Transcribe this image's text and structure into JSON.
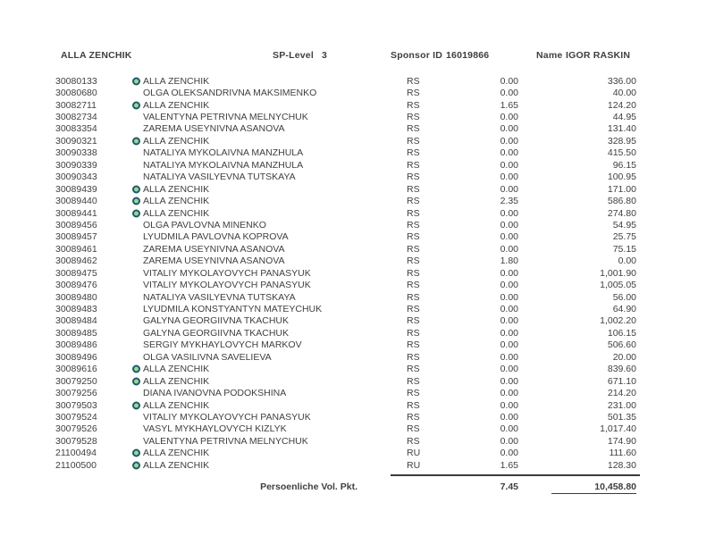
{
  "page": {
    "header": {
      "owner_name": "ALLA ZENCHIK",
      "sp_level_label": "SP-Level",
      "sp_level_value": "3",
      "sponsor_id_label": "Sponsor ID",
      "sponsor_id_value": "16019866",
      "name_label": "Name",
      "name_value": "IGOR RASKIN"
    },
    "colors": {
      "text": "#3f3f3f",
      "marker_ring": "#1c5d68",
      "marker_fill": "#9fd39b"
    },
    "table": {
      "rows": [
        {
          "id": "30080133",
          "marked": true,
          "name": "ALLA ZENCHIK",
          "code": "RS",
          "points": "0.00",
          "volume": "336.00"
        },
        {
          "id": "30080680",
          "marked": false,
          "name": "OLGA OLEKSANDRIVNA MAKSIMENKO",
          "code": "RS",
          "points": "0.00",
          "volume": "40.00"
        },
        {
          "id": "30082711",
          "marked": true,
          "name": "ALLA ZENCHIK",
          "code": "RS",
          "points": "1.65",
          "volume": "124.20"
        },
        {
          "id": "30082734",
          "marked": false,
          "name": "VALENTYNA PETRIVNA MELNYCHUK",
          "code": "RS",
          "points": "0.00",
          "volume": "44.95"
        },
        {
          "id": "30083354",
          "marked": false,
          "name": "ZAREMA USEYNIVNA ASANOVA",
          "code": "RS",
          "points": "0.00",
          "volume": "131.40"
        },
        {
          "id": "30090321",
          "marked": true,
          "name": "ALLA ZENCHIK",
          "code": "RS",
          "points": "0.00",
          "volume": "328.95"
        },
        {
          "id": "30090338",
          "marked": false,
          "name": "NATALIYA MYKOLAIVNA MANZHULA",
          "code": "RS",
          "points": "0.00",
          "volume": "415.50"
        },
        {
          "id": "30090339",
          "marked": false,
          "name": "NATALIYA MYKOLAIVNA MANZHULA",
          "code": "RS",
          "points": "0.00",
          "volume": "96.15"
        },
        {
          "id": "30090343",
          "marked": false,
          "name": "NATALIYA VASILYEVNA TUTSKAYA",
          "code": "RS",
          "points": "0.00",
          "volume": "100.95"
        },
        {
          "id": "30089439",
          "marked": true,
          "name": "ALLA ZENCHIK",
          "code": "RS",
          "points": "0.00",
          "volume": "171.00"
        },
        {
          "id": "30089440",
          "marked": true,
          "name": "ALLA ZENCHIK",
          "code": "RS",
          "points": "2.35",
          "volume": "586.80"
        },
        {
          "id": "30089441",
          "marked": true,
          "name": "ALLA ZENCHIK",
          "code": "RS",
          "points": "0.00",
          "volume": "274.80"
        },
        {
          "id": "30089456",
          "marked": false,
          "name": "OLGA PAVLOVNA MINENKO",
          "code": "RS",
          "points": "0.00",
          "volume": "54.95"
        },
        {
          "id": "30089457",
          "marked": false,
          "name": "LYUDMILA PAVLOVNA KOPROVA",
          "code": "RS",
          "points": "0.00",
          "volume": "25.75"
        },
        {
          "id": "30089461",
          "marked": false,
          "name": "ZAREMA USEYNIVNA ASANOVA",
          "code": "RS",
          "points": "0.00",
          "volume": "75.15"
        },
        {
          "id": "30089462",
          "marked": false,
          "name": "ZAREMA USEYNIVNA ASANOVA",
          "code": "RS",
          "points": "1.80",
          "volume": "0.00"
        },
        {
          "id": "30089475",
          "marked": false,
          "name": "VITALIY MYKOLAYOVYCH PANASYUK",
          "code": "RS",
          "points": "0.00",
          "volume": "1,001.90"
        },
        {
          "id": "30089476",
          "marked": false,
          "name": "VITALIY MYKOLAYOVYCH PANASYUK",
          "code": "RS",
          "points": "0.00",
          "volume": "1,005.05"
        },
        {
          "id": "30089480",
          "marked": false,
          "name": "NATALIYA VASILYEVNA TUTSKAYA",
          "code": "RS",
          "points": "0.00",
          "volume": "56.00"
        },
        {
          "id": "30089483",
          "marked": false,
          "name": "LYUDMILA KONSTYANTYN MATEYCHUK",
          "code": "RS",
          "points": "0.00",
          "volume": "64.90"
        },
        {
          "id": "30089484",
          "marked": false,
          "name": "GALYNA GEORGIIVNA TKACHUK",
          "code": "RS",
          "points": "0.00",
          "volume": "1,002.20"
        },
        {
          "id": "30089485",
          "marked": false,
          "name": "GALYNA GEORGIIVNA TKACHUK",
          "code": "RS",
          "points": "0.00",
          "volume": "106.15"
        },
        {
          "id": "30089486",
          "marked": false,
          "name": "SERGIY MYKHAYLOVYCH MARKOV",
          "code": "RS",
          "points": "0.00",
          "volume": "506.60"
        },
        {
          "id": "30089496",
          "marked": false,
          "name": "OLGA VASILIVNA SAVELIEVA",
          "code": "RS",
          "points": "0.00",
          "volume": "20.00"
        },
        {
          "id": "30089616",
          "marked": true,
          "name": "ALLA ZENCHIK",
          "code": "RS",
          "points": "0.00",
          "volume": "839.60"
        },
        {
          "id": "30079250",
          "marked": true,
          "name": "ALLA ZENCHIK",
          "code": "RS",
          "points": "0.00",
          "volume": "671.10"
        },
        {
          "id": "30079256",
          "marked": false,
          "name": "DIANA IVANOVNA PODOKSHINA",
          "code": "RS",
          "points": "0.00",
          "volume": "214.20"
        },
        {
          "id": "30079503",
          "marked": true,
          "name": "ALLA ZENCHIK",
          "code": "RS",
          "points": "0.00",
          "volume": "231.00"
        },
        {
          "id": "30079524",
          "marked": false,
          "name": "VITALIY MYKOLAYOVYCH PANASYUK",
          "code": "RS",
          "points": "0.00",
          "volume": "501.35"
        },
        {
          "id": "30079526",
          "marked": false,
          "name": "VASYL MYKHAYLOVYCH KIZLYK",
          "code": "RS",
          "points": "0.00",
          "volume": "1,017.40"
        },
        {
          "id": "30079528",
          "marked": false,
          "name": "VALENTYNA PETRIVNA MELNYCHUK",
          "code": "RS",
          "points": "0.00",
          "volume": "174.90"
        },
        {
          "id": "21100494",
          "marked": true,
          "name": "ALLA ZENCHIK",
          "code": "RU",
          "points": "0.00",
          "volume": "111.60"
        },
        {
          "id": "21100500",
          "marked": true,
          "name": "ALLA ZENCHIK",
          "code": "RU",
          "points": "1.65",
          "volume": "128.30"
        }
      ],
      "footer": {
        "label": "Persoenliche Vol. Pkt.",
        "points_total": "7.45",
        "volume_total": "10,458.80"
      }
    }
  }
}
